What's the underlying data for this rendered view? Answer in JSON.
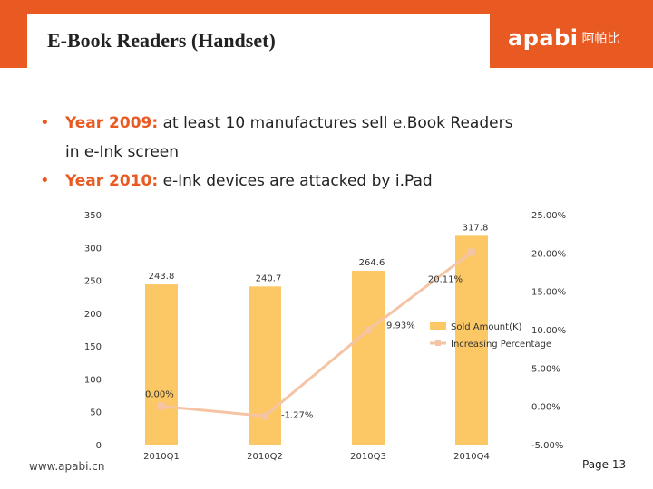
{
  "header": {
    "title": "E-Book Readers (Handset)",
    "logo_en": "apabi",
    "logo_cn": "阿帕比",
    "bg_color": "#e85a22"
  },
  "bullets": [
    {
      "year": "Year 2009:",
      "text": " at least 10 manufactures sell e.Book Readers",
      "cont": "in e-Ink screen"
    },
    {
      "year": "Year 2010:",
      "text": " e-Ink devices are attacked by i.Pad",
      "cont": ""
    }
  ],
  "chart_data": {
    "type": "bar",
    "categories": [
      "2010Q1",
      "2010Q2",
      "2010Q3",
      "2010Q4"
    ],
    "series": [
      {
        "name": "Sold Amount(K)",
        "type": "bar",
        "values": [
          243.8,
          240.7,
          264.6,
          317.8
        ],
        "labels": [
          "243.8",
          "240.7",
          "264.6",
          "317.8"
        ],
        "color": "#fcc765"
      },
      {
        "name": "Increasing Percentage",
        "type": "line",
        "axis": "right",
        "values": [
          0.0,
          -1.27,
          9.93,
          20.11
        ],
        "labels": [
          "0.00%",
          "-1.27%",
          "9.93%",
          "20.11%"
        ],
        "color": "#f4c4a4"
      }
    ],
    "ylim": [
      0,
      350
    ],
    "yticks": [
      "0",
      "50",
      "100",
      "150",
      "200",
      "250",
      "300",
      "350"
    ],
    "y2lim": [
      -5,
      25
    ],
    "y2ticks": [
      "-5.00%",
      "0.00%",
      "5.00%",
      "10.00%",
      "15.00%",
      "20.00%",
      "25.00%"
    ],
    "legend_position": "right"
  },
  "footer": {
    "url": "www.apabi.cn",
    "page": "Page 13"
  }
}
